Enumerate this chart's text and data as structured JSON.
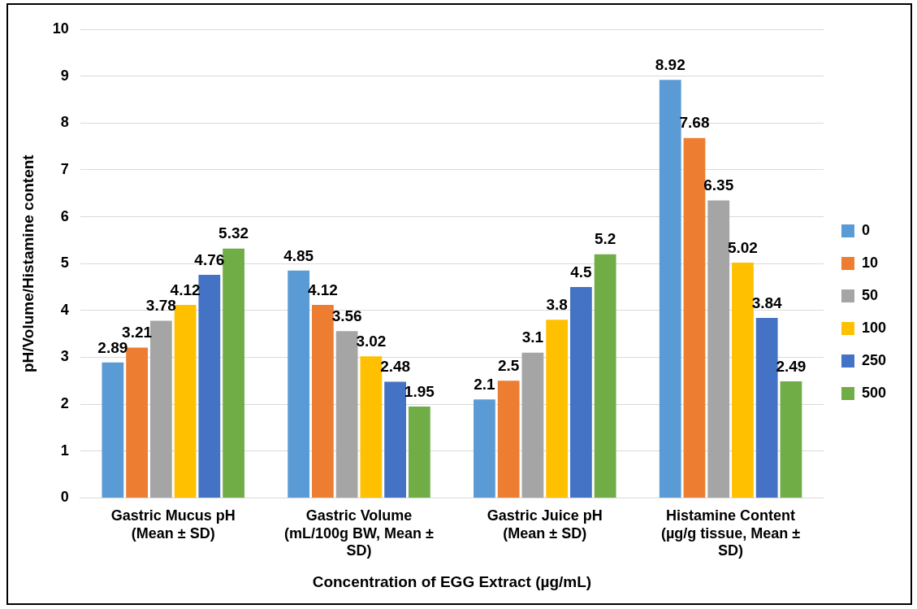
{
  "chart_data": {
    "type": "bar",
    "xlabel": "Concentration of EGG Extract (µg/mL)",
    "ylabel": "pH/Volume/Histamine content",
    "categories": [
      "Gastric Mucus pH (Mean ± SD)",
      "Gastric Volume (mL/100g BW, Mean ± SD)",
      "Gastric Juice pH (Mean ± SD)",
      "Histamine Content (µg/g tissue, Mean ± SD)"
    ],
    "series": [
      {
        "name": "0",
        "color": "#5b9bd5",
        "values": [
          2.89,
          4.85,
          2.1,
          8.92
        ]
      },
      {
        "name": "10",
        "color": "#ed7d31",
        "values": [
          3.21,
          4.12,
          2.5,
          7.68
        ]
      },
      {
        "name": "50",
        "color": "#a5a5a5",
        "values": [
          3.78,
          3.56,
          3.1,
          6.35
        ]
      },
      {
        "name": "100",
        "color": "#ffc000",
        "values": [
          4.12,
          3.02,
          3.8,
          5.02
        ]
      },
      {
        "name": "250",
        "color": "#4472c4",
        "values": [
          4.76,
          2.48,
          4.5,
          3.84
        ]
      },
      {
        "name": "500",
        "color": "#70ad47",
        "values": [
          5.32,
          1.95,
          5.2,
          2.49
        ]
      }
    ],
    "ylim": [
      0,
      10
    ],
    "yticks": [
      0,
      1,
      2,
      3,
      4,
      5,
      6,
      7,
      8,
      9,
      10
    ],
    "grid": "y",
    "legend": "right",
    "data_labels": true
  }
}
